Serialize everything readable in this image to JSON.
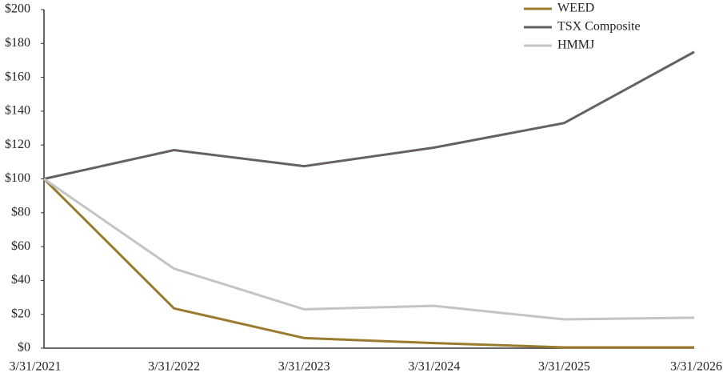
{
  "chart_data": {
    "type": "line",
    "categories": [
      "3/31/2021",
      "3/31/2022",
      "3/31/2023",
      "3/31/2024",
      "3/31/2025",
      "3/31/2026"
    ],
    "series": [
      {
        "name": "WEED",
        "color": "#9a7b2e",
        "values": [
          100,
          23.5,
          6,
          3,
          0.5,
          0.5
        ]
      },
      {
        "name": "TSX Composite",
        "color": "#666161",
        "values": [
          100,
          117,
          107.5,
          118.5,
          133,
          175
        ]
      },
      {
        "name": "HMMJ",
        "color": "#c4c4c4",
        "values": [
          100,
          47,
          23,
          25,
          17,
          18
        ]
      }
    ],
    "ylim": [
      0,
      200
    ],
    "yticks": [
      {
        "value": 0,
        "label": "$0"
      },
      {
        "value": 20,
        "label": "$20"
      },
      {
        "value": 40,
        "label": "$40"
      },
      {
        "value": 60,
        "label": "$60"
      },
      {
        "value": 80,
        "label": "$80"
      },
      {
        "value": 100,
        "label": "$100"
      },
      {
        "value": 120,
        "label": "$120"
      },
      {
        "value": 140,
        "label": "$140"
      },
      {
        "value": 160,
        "label": "$160"
      },
      {
        "value": 180,
        "label": "$180"
      },
      {
        "value": 200,
        "label": "$200"
      }
    ],
    "grid": false,
    "legend": "top-right"
  }
}
